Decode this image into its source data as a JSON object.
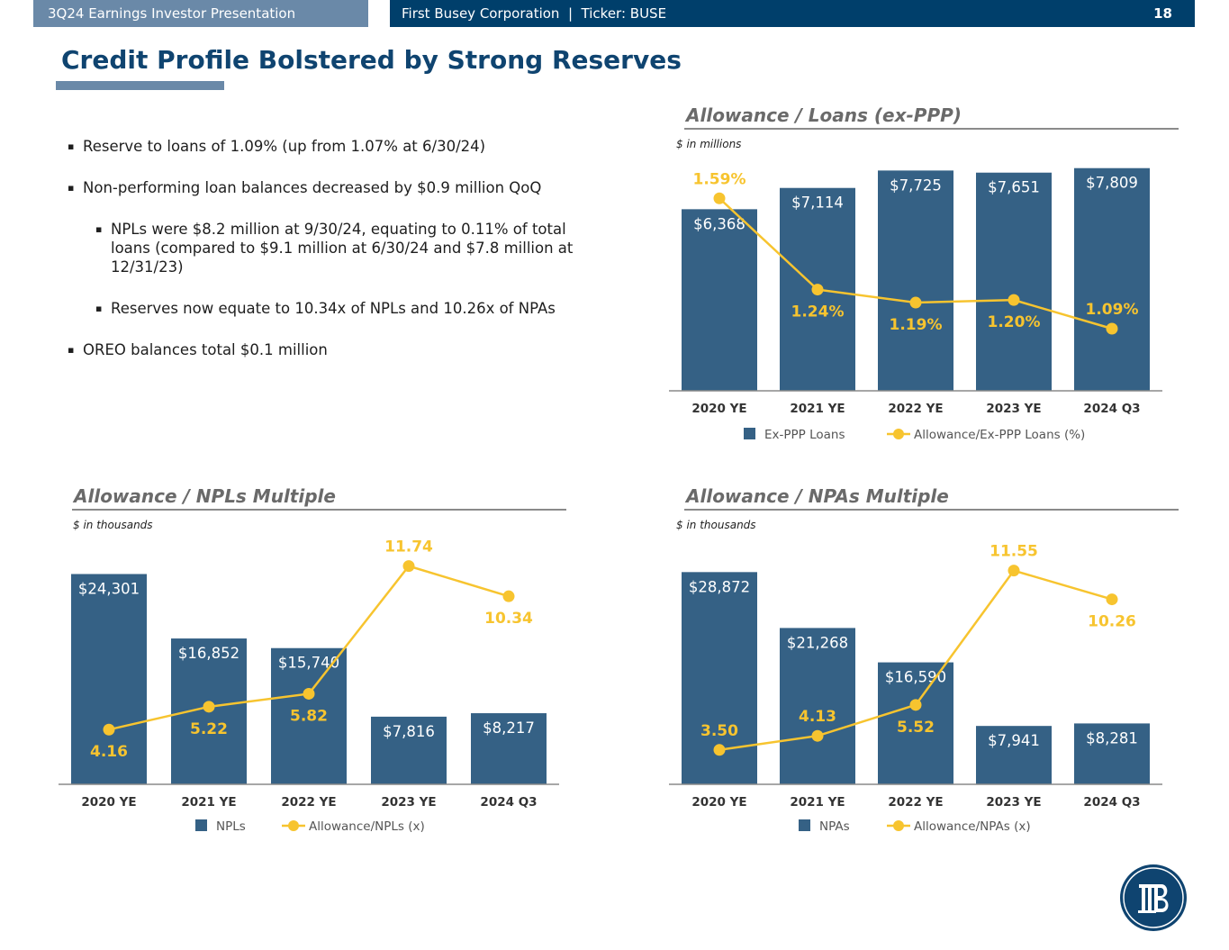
{
  "header": {
    "left_text": "3Q24 Earnings Investor Presentation",
    "right_text": "First Busey Corporation  |  Ticker: BUSE",
    "page_number": "18"
  },
  "page_title": "Credit Profile Bolstered by Strong Reserves",
  "bullets": [
    {
      "level": 1,
      "text": "Reserve to loans of 1.09% (up from 1.07% at 6/30/24)"
    },
    {
      "level": 1,
      "text": "Non-performing loan balances decreased by $0.9 million QoQ"
    },
    {
      "level": 2,
      "text": "NPLs were $8.2 million at 9/30/24, equating to 0.11% of total loans (compared to $9.1 million at 6/30/24 and $7.8 million at 12/31/23)"
    },
    {
      "level": 2,
      "text": "Reserves now equate to 10.34x of NPLs and 10.26x of NPAs"
    },
    {
      "level": 1,
      "text": "OREO balances total $0.1 million"
    }
  ],
  "colors": {
    "bar": "#356185",
    "line": "#f7c42f",
    "title": "#0f4470",
    "header_left": "#6a89a8",
    "header_right": "#003f6b"
  },
  "logo_icon": "busey-logo-icon",
  "chart_data": [
    {
      "id": "loans",
      "type": "bar+line",
      "title": "Allowance / Loans (ex-PPP)",
      "unit_note": "$ in millions",
      "categories": [
        "2020 YE",
        "2021 YE",
        "2022 YE",
        "2023 YE",
        "2024 Q3"
      ],
      "bar_series": {
        "name": "Ex-PPP Loans",
        "values": [
          6368,
          7114,
          7725,
          7651,
          7809
        ],
        "labels": [
          "$6,368",
          "$7,114",
          "$7,725",
          "$7,651",
          "$7,809"
        ]
      },
      "line_series": {
        "name": "Allowance/Ex-PPP Loans (%)",
        "values": [
          1.59,
          1.24,
          1.19,
          1.2,
          1.09
        ],
        "labels": [
          "1.59%",
          "1.24%",
          "1.19%",
          "1.20%",
          "1.09%"
        ]
      },
      "bar_ylim": [
        0,
        8400
      ],
      "line_ylim": [
        0.9,
        1.66
      ]
    },
    {
      "id": "npls",
      "type": "bar+line",
      "title": "Allowance / NPLs Multiple",
      "unit_note": "$ in thousands",
      "categories": [
        "2020 YE",
        "2021 YE",
        "2022 YE",
        "2023 YE",
        "2024 Q3"
      ],
      "bar_series": {
        "name": "NPLs",
        "values": [
          24301,
          16852,
          15740,
          7816,
          8217
        ],
        "labels": [
          "$24,301",
          "$16,852",
          "$15,740",
          "$7,816",
          "$8,217"
        ]
      },
      "line_series": {
        "name": "Allowance/NPLs (x)",
        "values": [
          4.16,
          5.22,
          5.82,
          11.74,
          10.34
        ],
        "labels": [
          "4.16",
          "5.22",
          "5.82",
          "11.74",
          "10.34"
        ]
      },
      "bar_ylim": [
        0,
        28200
      ],
      "line_ylim": [
        2.5,
        12.1
      ]
    },
    {
      "id": "npas",
      "type": "bar+line",
      "title": "Allowance / NPAs Multiple",
      "unit_note": "$ in thousands",
      "categories": [
        "2020 YE",
        "2021 YE",
        "2022 YE",
        "2023 YE",
        "2024 Q3"
      ],
      "bar_series": {
        "name": "NPAs",
        "values": [
          28872,
          21268,
          16590,
          7941,
          8281
        ],
        "labels": [
          "$28,872",
          "$21,268",
          "$16,590",
          "$7,941",
          "$8,281"
        ]
      },
      "line_series": {
        "name": "Allowance/NPAs (x)",
        "values": [
          3.5,
          4.13,
          5.52,
          11.55,
          10.26
        ],
        "labels": [
          "3.50",
          "4.13",
          "5.52",
          "11.55",
          "10.26"
        ]
      },
      "bar_ylim": [
        0,
        33200
      ],
      "line_ylim": [
        2.4,
        11.9
      ]
    }
  ]
}
